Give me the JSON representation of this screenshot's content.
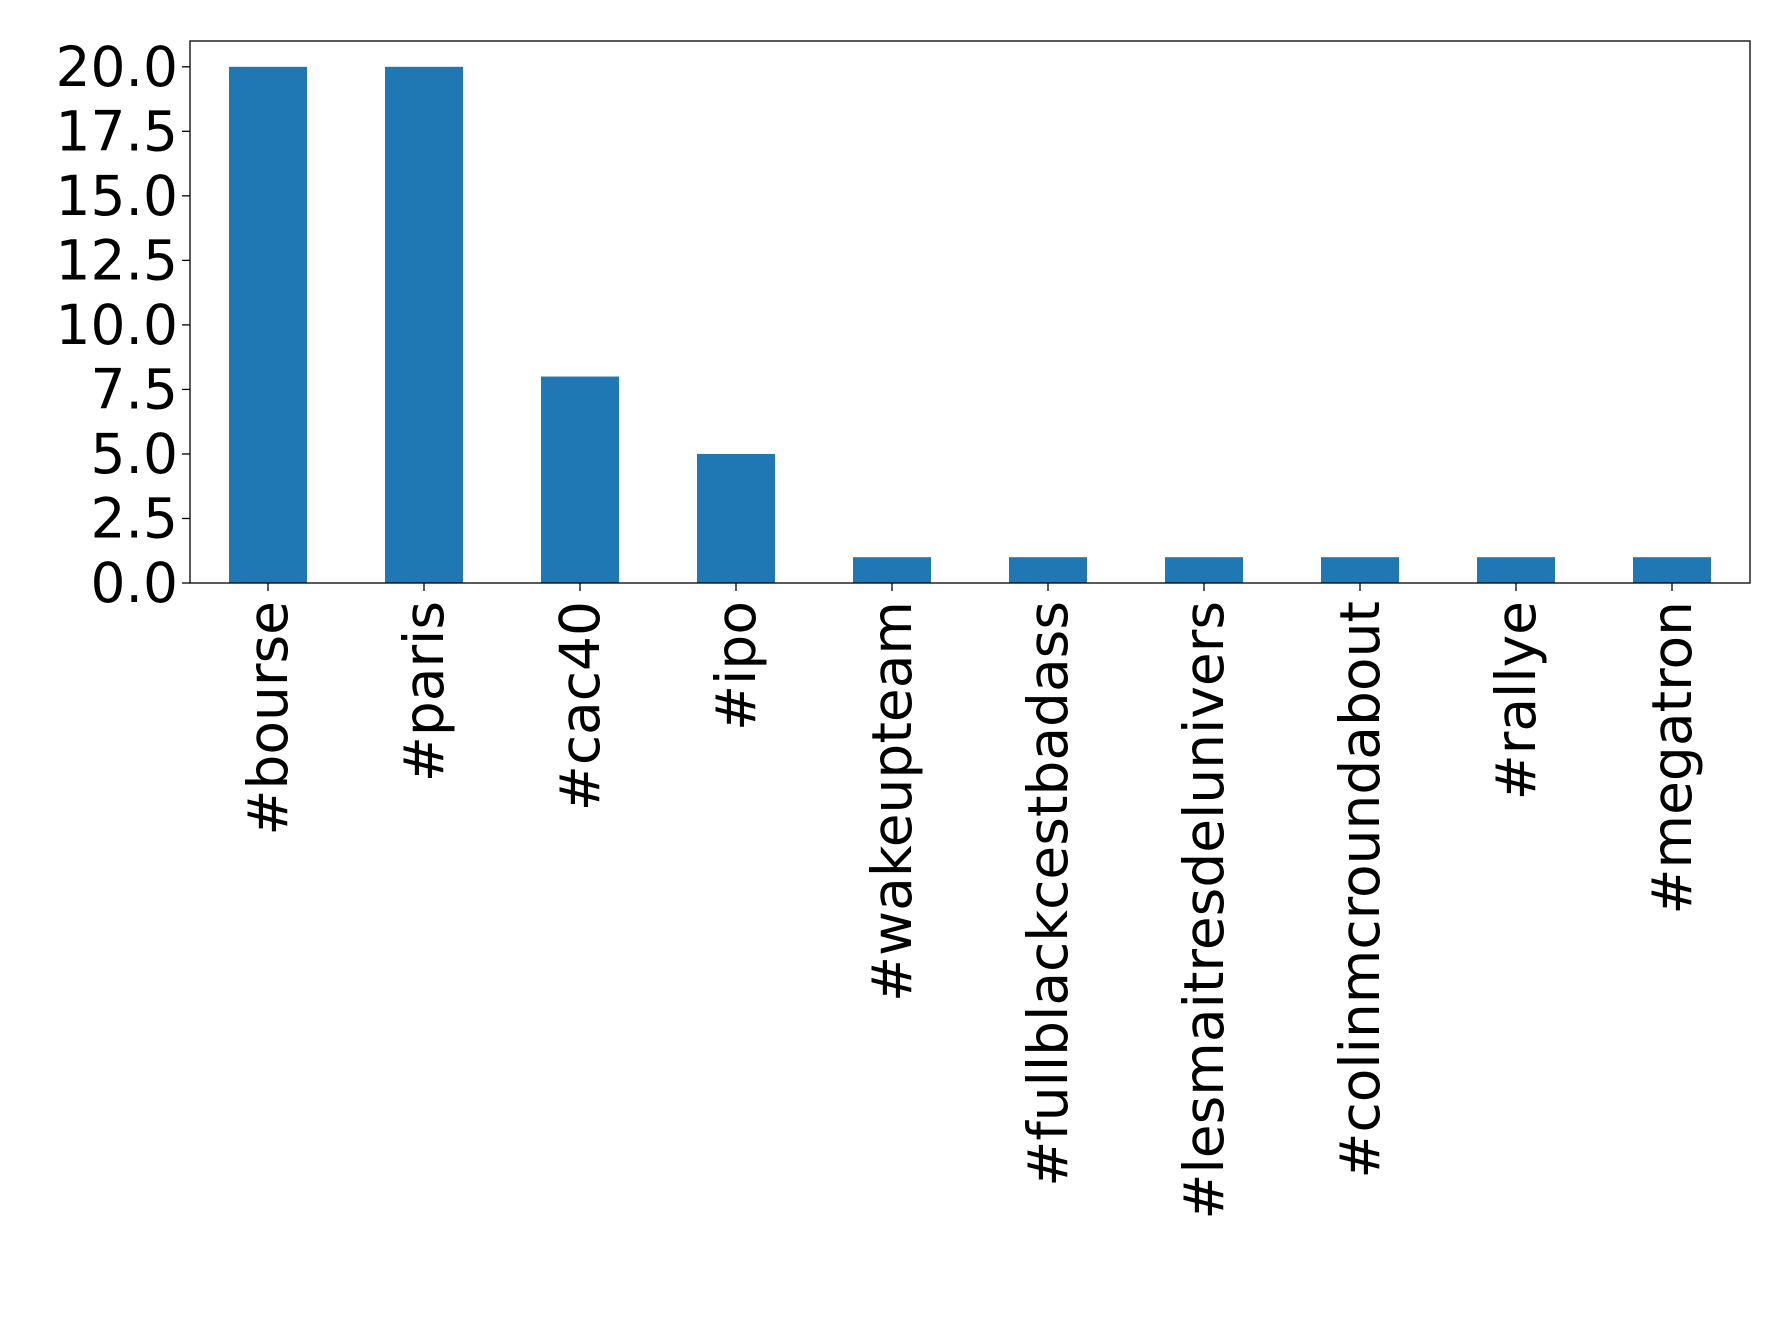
{
  "chart_data": {
    "type": "bar",
    "title": "",
    "xlabel": "",
    "ylabel": "",
    "categories": [
      "#bourse",
      "#paris",
      "#cac40",
      "#ipo",
      "#wakeupteam",
      "#fullblackcestbadass",
      "#lesmaitresdelunivers",
      "#colinmcroundabout",
      "#rallye",
      "#megatron"
    ],
    "values": [
      20,
      20,
      8,
      5,
      1,
      1,
      1,
      1,
      1,
      1
    ],
    "ylim": [
      0,
      21
    ],
    "yticks": [
      "0.0",
      "2.5",
      "5.0",
      "7.5",
      "10.0",
      "12.5",
      "15.0",
      "17.5",
      "20.0"
    ],
    "grid": false,
    "legend": "none",
    "bar_color": "#1f77b4"
  }
}
